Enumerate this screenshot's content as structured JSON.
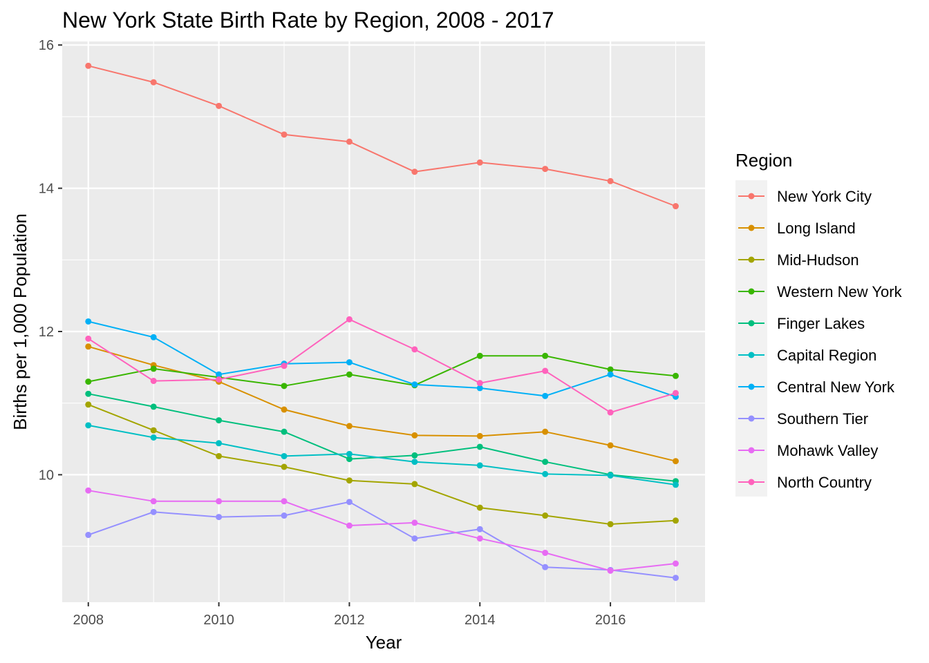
{
  "chart_data": {
    "type": "line",
    "title": "New York State Birth Rate by Region, 2008 - 2017",
    "xlabel": "Year",
    "ylabel": "Births per 1,000 Population",
    "x": [
      2008,
      2009,
      2010,
      2011,
      2012,
      2013,
      2014,
      2015,
      2016,
      2017
    ],
    "x_ticks": [
      "2008",
      "2010",
      "2012",
      "2014",
      "2016"
    ],
    "y_ticks": [
      "10",
      "12",
      "14",
      "16"
    ],
    "xlim": [
      2007.6,
      2017.45
    ],
    "ylim": [
      8.22,
      16.05
    ],
    "grid": true,
    "legend": {
      "title": "Region",
      "placement": "right"
    },
    "series": [
      {
        "name": "New York City",
        "color": "#F8766D",
        "values": [
          15.71,
          15.48,
          15.15,
          14.75,
          14.65,
          14.23,
          14.36,
          14.27,
          14.1,
          13.75
        ]
      },
      {
        "name": "Long Island",
        "color": "#D89000",
        "values": [
          11.79,
          11.53,
          11.3,
          10.91,
          10.68,
          10.55,
          10.54,
          10.6,
          10.41,
          10.19
        ]
      },
      {
        "name": "Mid-Hudson",
        "color": "#A3A500",
        "values": [
          10.98,
          10.62,
          10.26,
          10.11,
          9.92,
          9.87,
          9.54,
          9.43,
          9.31,
          9.36
        ]
      },
      {
        "name": "Western New York",
        "color": "#39B600",
        "values": [
          11.3,
          11.48,
          11.36,
          11.24,
          11.4,
          11.25,
          11.66,
          11.66,
          11.47,
          11.38
        ]
      },
      {
        "name": "Finger Lakes",
        "color": "#00BF7D",
        "values": [
          11.13,
          10.95,
          10.76,
          10.6,
          10.22,
          10.27,
          10.39,
          10.18,
          10.0,
          9.91
        ]
      },
      {
        "name": "Capital Region",
        "color": "#00BFC4",
        "values": [
          10.69,
          10.52,
          10.44,
          10.26,
          10.29,
          10.18,
          10.13,
          10.01,
          9.99,
          9.86
        ]
      },
      {
        "name": "Central New York",
        "color": "#00B0F6",
        "values": [
          12.14,
          11.92,
          11.4,
          11.55,
          11.57,
          11.26,
          11.21,
          11.1,
          11.4,
          11.09
        ]
      },
      {
        "name": "Southern Tier",
        "color": "#9590FF",
        "values": [
          9.16,
          9.48,
          9.41,
          9.43,
          9.62,
          9.11,
          9.24,
          8.71,
          8.67,
          8.56
        ]
      },
      {
        "name": "Mohawk Valley",
        "color": "#E76BF3",
        "values": [
          9.78,
          9.63,
          9.63,
          9.63,
          9.29,
          9.33,
          9.11,
          8.91,
          8.66,
          8.76
        ]
      },
      {
        "name": "North Country",
        "color": "#FF62BC",
        "values": [
          11.9,
          11.31,
          11.33,
          11.52,
          12.17,
          11.75,
          11.28,
          11.45,
          10.87,
          11.14
        ]
      }
    ]
  },
  "colors": {
    "panel_background": "#EBEBEB",
    "grid_major": "#FFFFFF",
    "tick_text": "#4D4D4D"
  }
}
